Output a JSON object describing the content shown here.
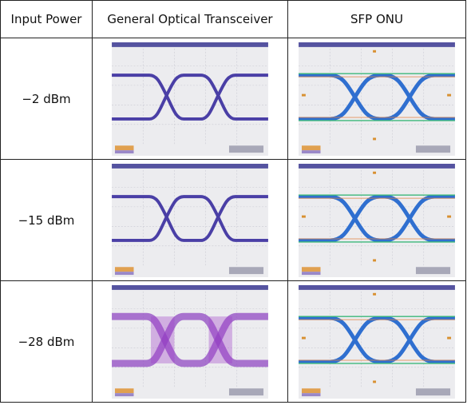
{
  "table": {
    "header": [
      "Input Power",
      "General Optical Transceiver",
      "SFP ONU"
    ],
    "rows": [
      [
        "−2 dBm"
      ],
      [
        "−15 dBm"
      ],
      [
        "−28 dBm"
      ]
    ]
  }
}
